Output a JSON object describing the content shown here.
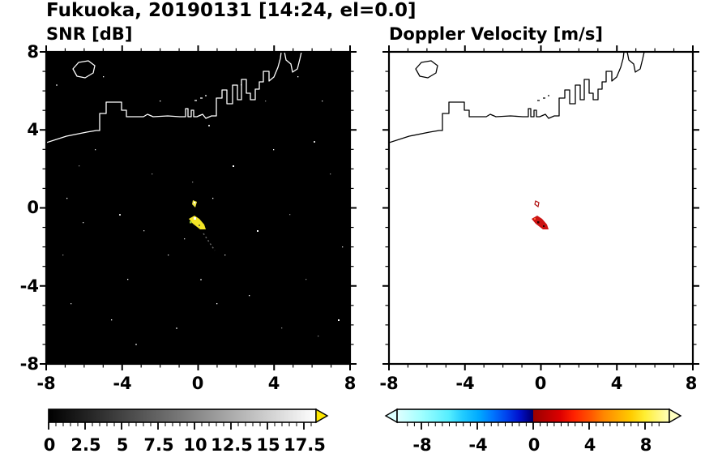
{
  "title": "Fukuoka, 20190131 [14:24, el=0.0]",
  "panels": {
    "snr": {
      "title": "SNR [dB]",
      "background": "#000000",
      "coast_color": "#ffffff",
      "yticks": [
        "8",
        "4",
        "0",
        "-4",
        "-8"
      ],
      "xticks": [
        "-8",
        "-4",
        "0",
        "4",
        "8"
      ]
    },
    "doppler": {
      "title": "Doppler Velocity [m/s]",
      "background": "#ffffff",
      "coast_color": "#000000",
      "xticks": [
        "-8",
        "-4",
        "0",
        "4",
        "8"
      ]
    }
  },
  "colorbars": {
    "snr": {
      "labels": [
        "0",
        "2.5",
        "5",
        "7.5",
        "10",
        "12.5",
        "15",
        "17.5"
      ],
      "over_arrow_color": "#ffe800"
    },
    "doppler": {
      "labels": [
        "-8",
        "-4",
        "0",
        "4",
        "8"
      ],
      "under_arrow_color": "#dcffff",
      "over_arrow_color": "#ffffc0"
    }
  },
  "chart_data": [
    {
      "type": "heatmap",
      "title": "SNR [dB]",
      "xlim": [
        -8,
        8
      ],
      "ylim": [
        -8,
        8
      ],
      "xticks": [
        -8,
        -4,
        0,
        4,
        8
      ],
      "yticks": [
        -8,
        -4,
        0,
        4,
        8
      ],
      "colorbar_ticks": [
        0,
        2.5,
        5,
        7.5,
        10,
        12.5,
        15,
        17.5
      ],
      "colorbar_range": [
        0,
        18.3
      ],
      "colormap": "grayscale black to white, yellow over-range arrow",
      "background_value": "no echo (black, ~0 dB) with sparse speckle noise",
      "features": [
        {
          "name": "coastline",
          "style": "white outline, Fukuoka coast with harbor structures, reaches top edge near x=4.3"
        },
        {
          "name": "island",
          "x": -6.1,
          "y": 7.1,
          "style": "small white outline"
        },
        {
          "name": "main-echo",
          "x": -0.3,
          "y": -1.0,
          "value": "~15-18 dB (yellow/white)"
        },
        {
          "name": "secondary-echo",
          "x": -0.2,
          "y": 0.2,
          "value": "~15 dB (yellow)"
        },
        {
          "name": "weak-streak",
          "from": [
            0.3,
            -1.6
          ],
          "to": [
            0.9,
            -2.4
          ],
          "value": "~3 dB (dim gray dots)"
        }
      ]
    },
    {
      "type": "heatmap",
      "title": "Doppler Velocity [m/s]",
      "xlim": [
        -8,
        8
      ],
      "ylim": [
        -8,
        8
      ],
      "xticks": [
        -8,
        -4,
        0,
        4,
        8
      ],
      "yticks": [
        -8,
        -4,
        0,
        4,
        8
      ],
      "colorbar_ticks": [
        -8,
        -4,
        0,
        4,
        8
      ],
      "colorbar_range": [
        -9.7,
        9.7
      ],
      "colormap": "diverging: pale cyan - cyan - blue - dark navy | dark red - red - orange - yellow - pale yellow",
      "background_value": "no data (white)",
      "features": [
        {
          "name": "coastline",
          "style": "black outline, same coast as SNR panel"
        },
        {
          "name": "main-echo",
          "x": -0.3,
          "y": -1.0,
          "value": "~ +2 to +3 m/s (red) with dark specks"
        },
        {
          "name": "secondary-echo",
          "x": -0.2,
          "y": 0.2,
          "value": "near 0 m/s (tiny outlined speck)"
        }
      ]
    }
  ]
}
